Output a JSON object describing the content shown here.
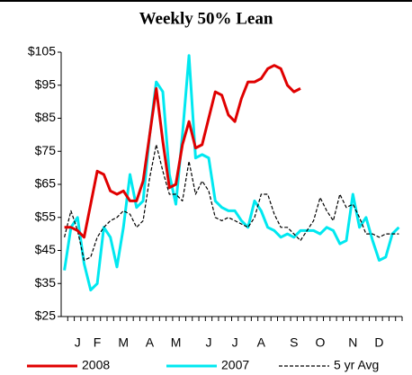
{
  "chart_data": {
    "type": "line",
    "title": "Weekly 50% Lean",
    "categories": [
      null,
      null,
      "J",
      null,
      null,
      "F",
      null,
      null,
      null,
      "M",
      null,
      null,
      null,
      "A",
      null,
      null,
      null,
      "M",
      null,
      null,
      null,
      null,
      "J",
      null,
      null,
      null,
      "J",
      null,
      null,
      null,
      "A",
      null,
      null,
      null,
      null,
      "S",
      null,
      null,
      null,
      "O",
      null,
      null,
      null,
      null,
      "N",
      null,
      null,
      null,
      "D",
      null,
      null,
      null
    ],
    "ylim": [
      25,
      105
    ],
    "yticks": [
      {
        "value": 25,
        "label": "$25"
      },
      {
        "value": 35,
        "label": "$35"
      },
      {
        "value": 45,
        "label": "$45"
      },
      {
        "value": 55,
        "label": "$55"
      },
      {
        "value": 65,
        "label": "$65"
      },
      {
        "value": 75,
        "label": "$75"
      },
      {
        "value": 85,
        "label": "$85"
      },
      {
        "value": 95,
        "label": "$95"
      },
      {
        "value": 105,
        "label": "$105"
      }
    ],
    "series": [
      {
        "name": "2008",
        "color": "#e00000",
        "line_style": "solid",
        "values": [
          52,
          52,
          51,
          49,
          59,
          69,
          68,
          63,
          62,
          63,
          60,
          60,
          66,
          80,
          94,
          78,
          64,
          65,
          77,
          84,
          76,
          77,
          85,
          93,
          92,
          86,
          84,
          91,
          96,
          96,
          97,
          100,
          101,
          100,
          95,
          93,
          94,
          null,
          null,
          null,
          null,
          null,
          null,
          null,
          null,
          null,
          null,
          null,
          null,
          null,
          null,
          null
        ]
      },
      {
        "name": "2007",
        "color": "#00e8f0",
        "line_style": "solid",
        "values": [
          39,
          52,
          55,
          41,
          33,
          35,
          52,
          49,
          40,
          52,
          68,
          58,
          60,
          80,
          96,
          93,
          68,
          59,
          80,
          104,
          73,
          74,
          73,
          60,
          58,
          57,
          57,
          54,
          52,
          60,
          57,
          52,
          51,
          49,
          50,
          49,
          51,
          51,
          51,
          50,
          52,
          51,
          47,
          48,
          62,
          52,
          55,
          48,
          42,
          43,
          50,
          52
        ]
      },
      {
        "name": "5 yr Avg",
        "color": "#000000",
        "line_style": "dashed",
        "values": [
          49,
          57,
          51,
          42,
          43,
          49,
          52,
          54,
          55,
          57,
          56,
          52,
          54,
          67,
          77,
          69,
          62,
          62,
          60,
          72,
          62,
          66,
          63,
          55,
          54,
          55,
          54,
          53,
          52,
          55,
          62,
          62,
          56,
          52,
          52,
          50,
          48,
          51,
          54,
          61,
          57,
          54,
          62,
          58,
          59,
          55,
          50,
          50,
          49,
          50,
          50,
          50
        ]
      }
    ]
  }
}
